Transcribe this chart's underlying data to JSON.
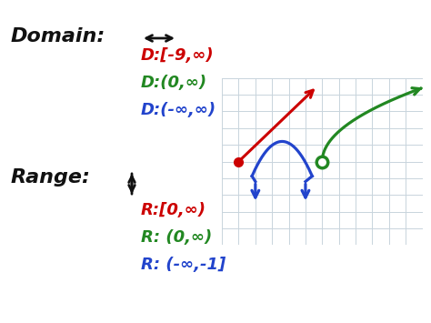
{
  "bg_color": "#ffffff",
  "domain_red": "D:[-9,∞)",
  "domain_green": "D:(0,∞)",
  "domain_blue": "D:(-∞,∞)",
  "range_red": "R:[0,∞)",
  "range_green": "R: (0,∞)",
  "range_blue": "R: (-∞,-1]",
  "color_red": "#cc0000",
  "color_green": "#228822",
  "color_blue": "#2244cc",
  "color_black": "#111111",
  "grid_color": "#c8d4dc",
  "axis_color": "#111111"
}
